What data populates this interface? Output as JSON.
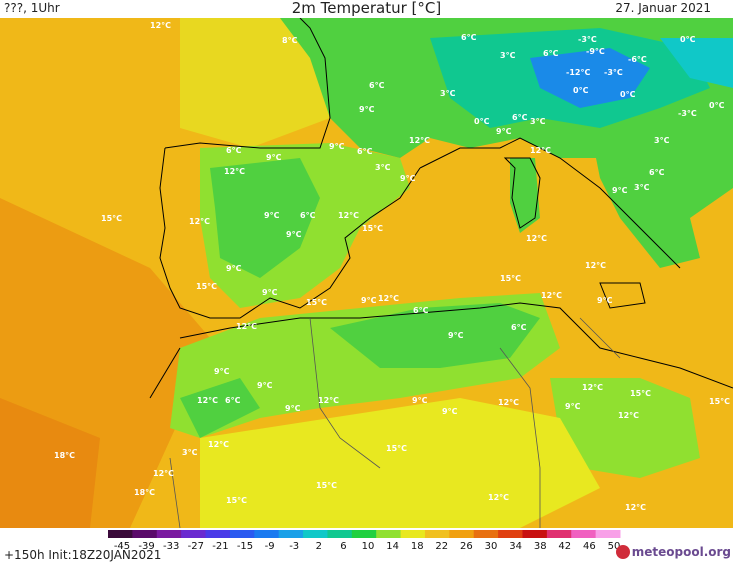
{
  "header": {
    "left": "???, 1Uhr",
    "title": "2m Temperatur [°C]",
    "date": "27. Januar 2021"
  },
  "footer": {
    "step_init": "+150h  Init:18Z20JAN2021",
    "brand": "meteopool.org",
    "brand_icon": "meteopool-logo-icon"
  },
  "colorbar": {
    "ticks": [
      "-45",
      "-39",
      "-33",
      "-27",
      "-21",
      "-15",
      "-9",
      "-3",
      "2",
      "6",
      "10",
      "14",
      "18",
      "22",
      "26",
      "30",
      "34",
      "38",
      "42",
      "46",
      "50"
    ],
    "colors": [
      "#3a0a3a",
      "#5a0a6a",
      "#7a1aa0",
      "#6a2ad0",
      "#4a3ae8",
      "#2a5af0",
      "#1a7af0",
      "#1aa0e8",
      "#10c8c8",
      "#10c890",
      "#20d040",
      "#90e030",
      "#e8e820",
      "#f0c020",
      "#f0a010",
      "#e87010",
      "#e04010",
      "#c81010",
      "#e03070",
      "#f060c0",
      "#f8a0e8"
    ]
  },
  "temperature_labels": [
    {
      "t": "12°C"
    },
    {
      "t": "8°C"
    },
    {
      "t": "6°C"
    },
    {
      "t": "3°C"
    },
    {
      "t": "6°C"
    },
    {
      "t": "-3°C"
    },
    {
      "t": "0°C"
    },
    {
      "t": "-9°C"
    },
    {
      "t": "-6°C"
    },
    {
      "t": "-12°C"
    },
    {
      "t": "-3°C"
    },
    {
      "t": "6°C"
    },
    {
      "t": "9°C"
    },
    {
      "t": "3°C"
    },
    {
      "t": "0°C"
    },
    {
      "t": "0°C"
    },
    {
      "t": "6°C"
    },
    {
      "t": "3°C"
    },
    {
      "t": "0°C"
    },
    {
      "t": "0°C"
    },
    {
      "t": "-3°C"
    },
    {
      "t": "9°C"
    },
    {
      "t": "12°C"
    },
    {
      "t": "6°C"
    },
    {
      "t": "9°C"
    },
    {
      "t": "12°C"
    },
    {
      "t": "6°C"
    },
    {
      "t": "3°C"
    },
    {
      "t": "9°C"
    },
    {
      "t": "12°C"
    },
    {
      "t": "3°C"
    },
    {
      "t": "6°C"
    },
    {
      "t": "15°C"
    },
    {
      "t": "12°C"
    },
    {
      "t": "9°C"
    },
    {
      "t": "6°C"
    },
    {
      "t": "12°C"
    },
    {
      "t": "15°C"
    },
    {
      "t": "9°C"
    },
    {
      "t": "9°C"
    },
    {
      "t": "3°C"
    },
    {
      "t": "9°C"
    },
    {
      "t": "12°C"
    },
    {
      "t": "9°C"
    },
    {
      "t": "15°C"
    },
    {
      "t": "12°C"
    },
    {
      "t": "15°C"
    },
    {
      "t": "9°C"
    },
    {
      "t": "12°C"
    },
    {
      "t": "15°C"
    },
    {
      "t": "9°C"
    },
    {
      "t": "12°C"
    },
    {
      "t": "9°C"
    },
    {
      "t": "12°C"
    },
    {
      "t": "6°C"
    },
    {
      "t": "9°C"
    },
    {
      "t": "6°C"
    },
    {
      "t": "12°C"
    },
    {
      "t": "9°C"
    },
    {
      "t": "9°C"
    },
    {
      "t": "12°C"
    },
    {
      "t": "6°C"
    },
    {
      "t": "9°C"
    },
    {
      "t": "12°C"
    },
    {
      "t": "9°C"
    },
    {
      "t": "9°C"
    },
    {
      "t": "12°C"
    },
    {
      "t": "12°C"
    },
    {
      "t": "9°C"
    },
    {
      "t": "15°C"
    },
    {
      "t": "15°C"
    },
    {
      "t": "12°C"
    },
    {
      "t": "18°C"
    },
    {
      "t": "3°C"
    },
    {
      "t": "12°C"
    },
    {
      "t": "15°C"
    },
    {
      "t": "18°C"
    },
    {
      "t": "15°C"
    },
    {
      "t": "15°C"
    },
    {
      "t": "12°C"
    },
    {
      "t": "12°C"
    }
  ]
}
